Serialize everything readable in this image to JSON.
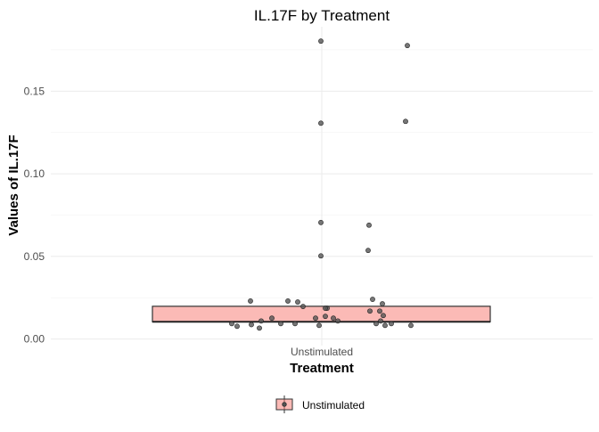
{
  "chart_data": {
    "type": "boxplot",
    "title": "IL.17F by Treatment",
    "xlabel": "Treatment",
    "ylabel": "Values of IL.17F",
    "categories": [
      "Unstimulated"
    ],
    "ylim": [
      -0.004,
      0.189
    ],
    "yticks": [
      0.0,
      0.05,
      0.1,
      0.15
    ],
    "ytick_labels": [
      "0.00",
      "0.05",
      "0.10",
      "0.15"
    ],
    "grid": true,
    "legend": {
      "position": "bottom",
      "entries": [
        "Unstimulated"
      ]
    },
    "box": {
      "category": "Unstimulated",
      "q1": 0.0104,
      "median": 0.0104,
      "q3": 0.0198,
      "fill": "#F8766D",
      "fill_opacity": 0.5
    },
    "points": [
      0.1803,
      0.1776,
      0.1306,
      0.1317,
      0.0705,
      0.0689,
      0.0503,
      0.0536,
      0.023,
      0.023,
      0.0224,
      0.0197,
      0.0186,
      0.0186,
      0.0169,
      0.0169,
      0.024,
      0.0213,
      0.0142,
      0.0109,
      0.0093,
      0.0082,
      0.0093,
      0.0082,
      0.0109,
      0.0126,
      0.0126,
      0.0137,
      0.0126,
      0.0109,
      0.0082,
      0.0093,
      0.0093,
      0.0087,
      0.0066,
      0.0093,
      0.0077
    ],
    "point_color": "#555555"
  }
}
